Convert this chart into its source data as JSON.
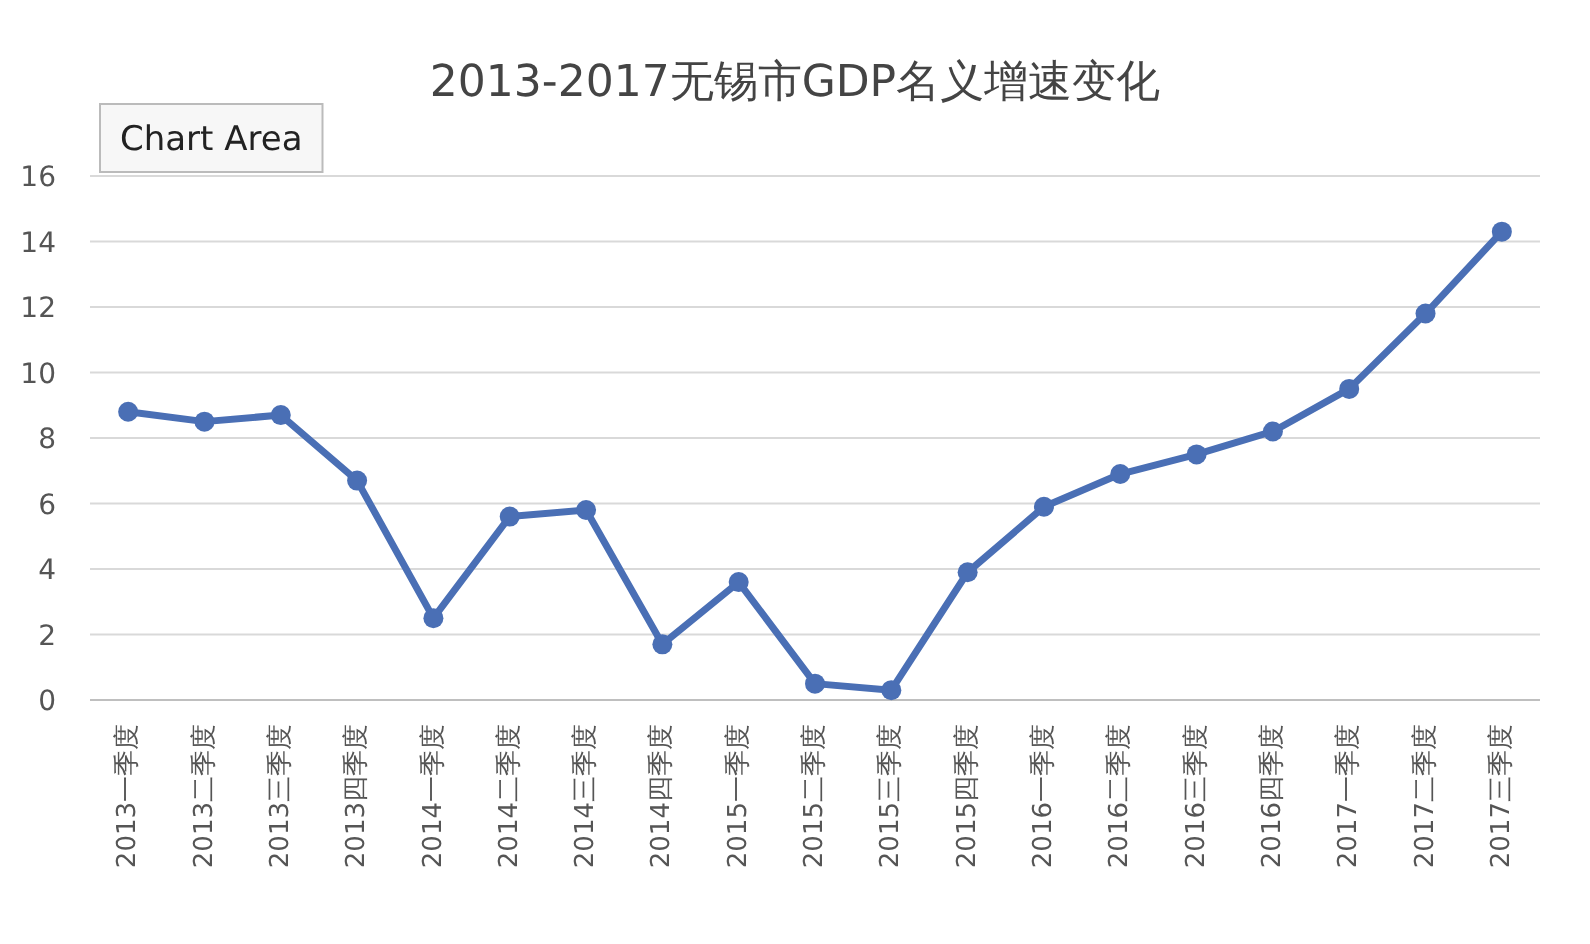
{
  "chart_data": {
    "type": "line",
    "title": "2013-2017无锡市GDP名义增速变化",
    "categories": [
      "2013一季度",
      "2013二季度",
      "2013三季度",
      "2013四季度",
      "2014一季度",
      "2014二季度",
      "2014三季度",
      "2014四季度",
      "2015一季度",
      "2015二季度",
      "2015三季度",
      "2015四季度",
      "2016一季度",
      "2016二季度",
      "2016三季度",
      "2016四季度",
      "2017一季度",
      "2017二季度",
      "2017三季度"
    ],
    "series": [
      {
        "color": "#4a6fb5",
        "values": [
          8.8,
          8.5,
          8.7,
          6.7,
          2.5,
          5.6,
          5.8,
          1.7,
          3.6,
          0.5,
          0.3,
          3.9,
          5.9,
          6.9,
          7.5,
          8.2,
          9.5,
          11.8,
          14.3
        ]
      }
    ],
    "ylim": [
      0,
      16
    ],
    "yticks": [
      0,
      2,
      4,
      6,
      8,
      10,
      12,
      14,
      16
    ],
    "grid": "y",
    "marker": "circle",
    "line_style": "solid",
    "annotations": [
      "Chart Area"
    ]
  }
}
